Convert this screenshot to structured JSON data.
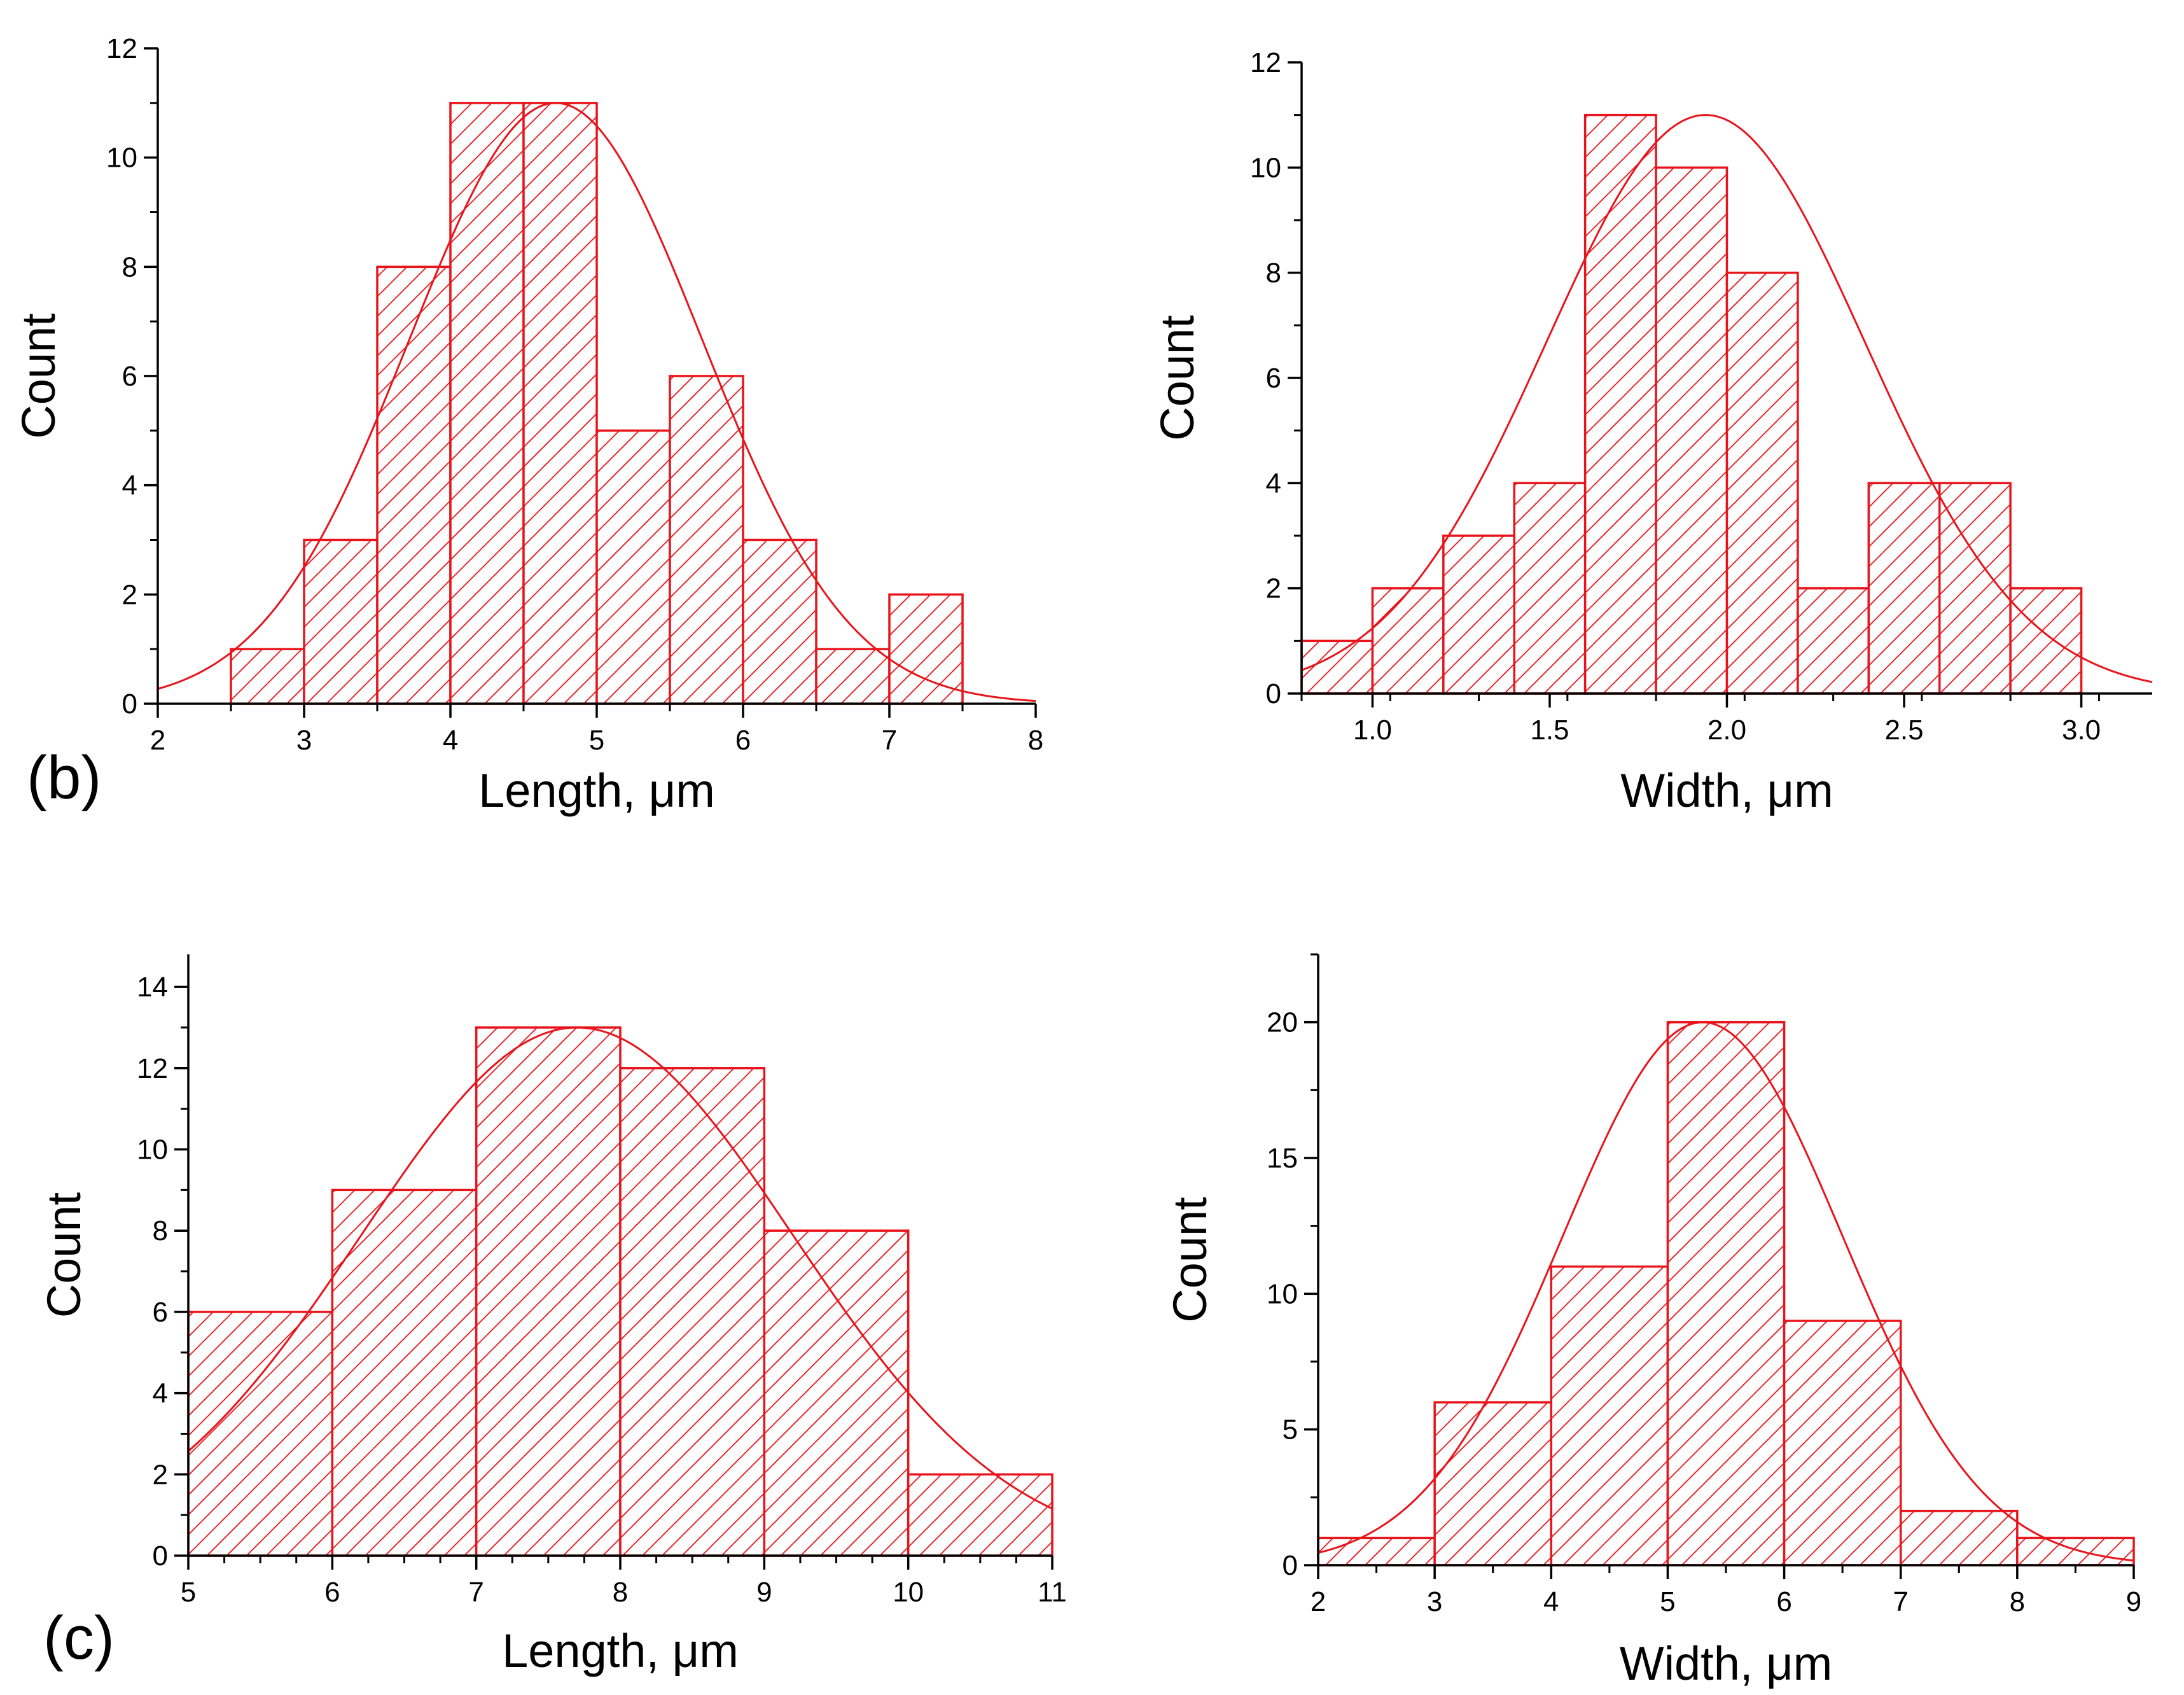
{
  "panels": {
    "b": "(b)",
    "c": "(c)"
  },
  "colors": {
    "bar": "#e8141b",
    "axis": "#000000",
    "background": "#ffffff"
  },
  "chart_data": [
    {
      "id": "b-length",
      "panel": "b",
      "type": "bar",
      "style": "histogram-hatched",
      "title": "",
      "xlabel": "Length, μm",
      "ylabel": "Count",
      "xlim": [
        2,
        8
      ],
      "ylim": [
        0,
        12
      ],
      "xticks": [
        2,
        3,
        4,
        5,
        6,
        7,
        8
      ],
      "xtick_labels": [
        "2",
        "3",
        "4",
        "5",
        "6",
        "7",
        "8"
      ],
      "xminor": 0.5,
      "yticks": [
        0,
        2,
        4,
        6,
        8,
        10,
        12
      ],
      "ytick_labels": [
        "0",
        "2",
        "4",
        "6",
        "8",
        "10",
        "12"
      ],
      "yminor": 1,
      "bins": [
        [
          2.5,
          3.0
        ],
        [
          3.0,
          3.5
        ],
        [
          3.5,
          4.0
        ],
        [
          4.0,
          4.5
        ],
        [
          4.5,
          5.0
        ],
        [
          5.0,
          5.5
        ],
        [
          5.5,
          6.0
        ],
        [
          6.0,
          6.5
        ],
        [
          6.5,
          7.0
        ],
        [
          7.0,
          7.5
        ]
      ],
      "values": [
        1,
        3,
        8,
        11,
        11,
        5,
        6,
        3,
        1,
        2
      ],
      "fit": {
        "type": "gaussian",
        "amplitude": 11.0,
        "center": 4.72,
        "sigma": 1.0,
        "range": [
          2,
          8
        ]
      }
    },
    {
      "id": "b-width",
      "panel": "b",
      "type": "bar",
      "style": "histogram-hatched",
      "title": "",
      "xlabel": "Width, μm",
      "ylabel": "Count",
      "xlim": [
        0.8,
        3.2
      ],
      "ylim": [
        0,
        12
      ],
      "xticks": [
        1.0,
        1.5,
        2.0,
        2.5,
        3.0
      ],
      "xtick_labels": [
        "1.0",
        "1.5",
        "2.0",
        "2.5",
        "3.0"
      ],
      "xminor": 0.25,
      "yticks": [
        0,
        2,
        4,
        6,
        8,
        10,
        12
      ],
      "ytick_labels": [
        "0",
        "2",
        "4",
        "6",
        "8",
        "10",
        "12"
      ],
      "yminor": 1,
      "bins": [
        [
          0.8,
          1.0
        ],
        [
          1.0,
          1.2
        ],
        [
          1.2,
          1.4
        ],
        [
          1.4,
          1.6
        ],
        [
          1.6,
          1.8
        ],
        [
          1.8,
          2.0
        ],
        [
          2.0,
          2.2
        ],
        [
          2.2,
          2.4
        ],
        [
          2.4,
          2.6
        ],
        [
          2.6,
          2.8
        ],
        [
          2.8,
          3.0
        ]
      ],
      "values": [
        1,
        2,
        3,
        4,
        11,
        10,
        8,
        2,
        4,
        4,
        2
      ],
      "fit": {
        "type": "gaussian",
        "amplitude": 11.0,
        "center": 1.94,
        "sigma": 0.45,
        "range": [
          0.8,
          3.2
        ]
      }
    },
    {
      "id": "c-length",
      "panel": "c",
      "type": "bar",
      "style": "histogram-hatched",
      "title": "",
      "xlabel": "Length, μm",
      "ylabel": "Count",
      "xlim": [
        5,
        11
      ],
      "ylim": [
        0,
        14.8
      ],
      "xticks": [
        5,
        6,
        7,
        8,
        9,
        10,
        11
      ],
      "xtick_labels": [
        "5",
        "6",
        "7",
        "8",
        "9",
        "10",
        "11"
      ],
      "xminor": 0.25,
      "yticks": [
        0,
        2,
        4,
        6,
        8,
        10,
        12,
        14
      ],
      "ytick_labels": [
        "0",
        "2",
        "4",
        "6",
        "8",
        "10",
        "12",
        "14"
      ],
      "yminor": 1,
      "bins": [
        [
          5,
          6
        ],
        [
          6,
          7
        ],
        [
          7,
          8
        ],
        [
          8,
          9
        ],
        [
          9,
          10
        ],
        [
          10,
          11
        ]
      ],
      "values": [
        6,
        9,
        13,
        12,
        8,
        2
      ],
      "fit": {
        "type": "gaussian",
        "amplitude": 13.0,
        "center": 7.7,
        "sigma": 1.5,
        "range": [
          5,
          11
        ]
      }
    },
    {
      "id": "c-width",
      "panel": "c",
      "type": "bar",
      "style": "histogram-hatched",
      "title": "",
      "xlabel": "Width, μm",
      "ylabel": "Count",
      "xlim": [
        2,
        9
      ],
      "ylim": [
        0,
        22.5
      ],
      "xticks": [
        2,
        3,
        4,
        5,
        6,
        7,
        8,
        9
      ],
      "xtick_labels": [
        "2",
        "3",
        "4",
        "5",
        "6",
        "7",
        "8",
        "9"
      ],
      "xminor": 0.5,
      "yticks": [
        0,
        5,
        10,
        15,
        20
      ],
      "ytick_labels": [
        "0",
        "5",
        "10",
        "15",
        "20"
      ],
      "yminor": 2.5,
      "bins": [
        [
          2,
          3
        ],
        [
          3,
          4
        ],
        [
          4,
          5
        ],
        [
          5,
          6
        ],
        [
          6,
          7
        ],
        [
          7,
          8
        ],
        [
          8,
          9
        ]
      ],
      "values": [
        1,
        6,
        11,
        20,
        9,
        2,
        1
      ],
      "fit": {
        "type": "gaussian",
        "amplitude": 20.0,
        "center": 5.3,
        "sigma": 1.2,
        "range": [
          2,
          9
        ]
      }
    }
  ]
}
